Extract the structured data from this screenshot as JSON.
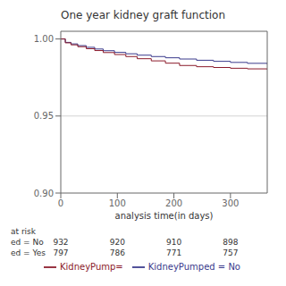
{
  "chart_data": {
    "type": "line",
    "title": "One year kidney graft function",
    "xlabel": "analysis time(in days)",
    "xlim": [
      0,
      365
    ],
    "xticks": [
      0,
      100,
      200,
      300
    ],
    "ylim": [
      0.9,
      1.005
    ],
    "yticks": [
      {
        "value": 0.9,
        "label": "0.90"
      },
      0.95,
      {
        "value": 1.0,
        "label": "1.00"
      }
    ],
    "hlines": [
      0.95
    ],
    "legend": "bottom",
    "series": [
      {
        "name": "KidneyPumped = No",
        "color": "#3a3a8c",
        "line_style": "step",
        "x": [
          0,
          8,
          18,
          30,
          45,
          60,
          75,
          95,
          115,
          135,
          160,
          185,
          210,
          240,
          270,
          300,
          330,
          365
        ],
        "values": [
          1.0,
          0.9978,
          0.9968,
          0.9957,
          0.9946,
          0.9935,
          0.9924,
          0.9913,
          0.9904,
          0.9895,
          0.9886,
          0.9878,
          0.987,
          0.9862,
          0.9855,
          0.9848,
          0.9842,
          0.9837
        ]
      },
      {
        "name": "KidneyPump=",
        "color": "#8b1a2a",
        "line_style": "step",
        "x": [
          0,
          8,
          18,
          30,
          45,
          60,
          75,
          95,
          115,
          135,
          160,
          185,
          210,
          240,
          270,
          300,
          330,
          365
        ],
        "values": [
          1.0,
          0.9975,
          0.9962,
          0.995,
          0.9937,
          0.9925,
          0.9912,
          0.9899,
          0.9886,
          0.9872,
          0.9858,
          0.9843,
          0.9828,
          0.982,
          0.9815,
          0.981,
          0.9806,
          0.9802
        ]
      }
    ],
    "at_risk": {
      "label": "at risk",
      "x": [
        0,
        100,
        200,
        300
      ],
      "rows": [
        {
          "name": "ed = No",
          "values": [
            932,
            920,
            910,
            898
          ]
        },
        {
          "name": "ed = Yes",
          "values": [
            797,
            786,
            771,
            757
          ]
        }
      ]
    }
  }
}
